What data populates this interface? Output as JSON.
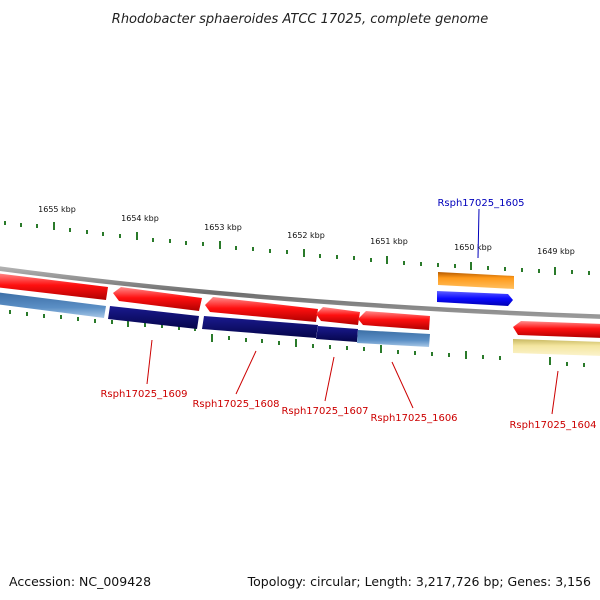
{
  "title": "Rhodobacter sphaeroides ATCC 17025, complete genome",
  "accession": "Accession: NC_009428",
  "topology": "Topology: circular; Length: 3,217,726 bp; Genes: 3,156",
  "kbp_labels": [
    "1655 kbp",
    "1654 kbp",
    "1653 kbp",
    "1652 kbp",
    "1651 kbp",
    "1650 kbp",
    "1649 kbp"
  ],
  "gene_labels": {
    "g1605": "Rsph17025_1605",
    "g1609": "Rsph17025_1609",
    "g1608": "Rsph17025_1608",
    "g1607": "Rsph17025_1607",
    "g1606": "Rsph17025_1606",
    "g1604": "Rsph17025_1604"
  },
  "colors": {
    "cds_red": "#e8000b",
    "cds_navy": "#0a0a78",
    "steel_blue": "#4a7fb5",
    "orange": "#f28c1a",
    "blue": "#1010ff",
    "pale_yellow": "#f2e49a",
    "tick_green": "#2a7a2a",
    "backbone": "#7f7f7f",
    "label_red": "#cc0000",
    "label_blue": "#0000bb"
  }
}
